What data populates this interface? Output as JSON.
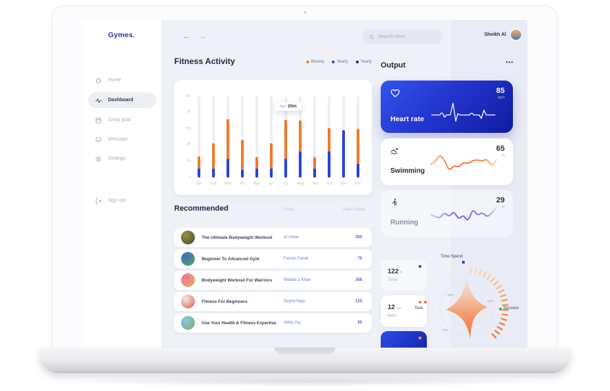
{
  "sidebar": {
    "logo": "Gymes.",
    "items": [
      {
        "id": "home",
        "label": "Home",
        "icon": "home",
        "active": false
      },
      {
        "id": "dashboard",
        "label": "Dashboard",
        "icon": "activity",
        "active": true
      },
      {
        "id": "creat-goal",
        "label": "Creat goal",
        "icon": "calendar",
        "active": false
      },
      {
        "id": "message",
        "label": "Message",
        "icon": "message",
        "active": false
      },
      {
        "id": "settings",
        "label": "Settings",
        "icon": "gear",
        "active": false
      }
    ],
    "signout": {
      "id": "sign-out",
      "label": "Sign out",
      "icon": "signout"
    }
  },
  "topbar": {
    "search_placeholder": "Search Here",
    "user_name": "Sheikh Al"
  },
  "fitness": {
    "title": "Fitness Activity",
    "legend": [
      {
        "label": "Weekly",
        "color": "#f6772c"
      },
      {
        "label": "Yearly",
        "color": "#2742e0"
      },
      {
        "label": "Yearly",
        "color": "#232d6e"
      }
    ],
    "tooltip": {
      "series": "Swi",
      "value": "20m"
    }
  },
  "chart_data": {
    "type": "bar",
    "stacked": true,
    "title": "Fitness Activity",
    "categories": [
      "Jan",
      "Feb",
      "Mar",
      "Arl",
      "May",
      "Jun",
      "Jul",
      "Aug",
      "Sep",
      "Oct",
      "Nov",
      "Dec"
    ],
    "y_ticks": [
      95,
      75,
      50,
      25,
      10,
      0
    ],
    "y_scale_note": "non-linear axis, tick labels evenly spaced",
    "series": [
      {
        "name": "Yearly",
        "color": "#2742e0",
        "values": [
          6,
          6,
          13,
          5,
          6,
          6,
          13,
          20,
          6,
          20,
          48,
          9
        ]
      },
      {
        "name": "Weekly",
        "color": "#f6772c",
        "values": [
          9,
          22,
          52,
          28,
          8,
          22,
          51,
          43,
          8,
          31,
          0,
          41
        ]
      }
    ],
    "tooltip": {
      "month": "Jul",
      "text": "Swi 20m"
    },
    "legend_position": "top-right",
    "grid": "vertical bar tracks only"
  },
  "recommended": {
    "title": "Recommended",
    "columns": {
      "trainer": "Trinor",
      "time": "Time Frame"
    },
    "chevron": "›",
    "rows": [
      {
        "title": "The Ultimate Bodyweight Workout",
        "trainer": "Al rohan",
        "time": "280",
        "thumb": [
          "#4a4636",
          "#97953c"
        ]
      },
      {
        "title": "Beginner To Advanced Gym",
        "trainer": "Farzon Faruk",
        "time": "75",
        "thumb": [
          "#58a85c",
          "#3a6fc0"
        ]
      },
      {
        "title": "Bodyweight Workout For Warriors",
        "trainer": "Wahab a Khan",
        "time": "356",
        "thumb": [
          "#f0b05a",
          "#e87898"
        ]
      },
      {
        "title": "Fitness For Beginners",
        "trainer": "Seyed Raju",
        "time": "125",
        "thumb": [
          "#e05545",
          "#f2ece6"
        ]
      },
      {
        "title": "Use Your Health & Fitness Expertise",
        "trainer": "Athiq chy",
        "time": "95",
        "thumb": [
          "#79b05c",
          "#8fc3ea"
        ]
      }
    ]
  },
  "output": {
    "title": "Output",
    "menu": "•••",
    "heart": {
      "label": "Heart rate",
      "value": "85",
      "unit": "bpm"
    },
    "swimming": {
      "label": "Swimming",
      "value": "65",
      "unit": "m",
      "color": "#f4732e",
      "spark": [
        38,
        48,
        80,
        55,
        12,
        35,
        28,
        48,
        42,
        55,
        58,
        52,
        62,
        30,
        58
      ]
    },
    "running": {
      "label": "Running",
      "value": "29",
      "unit": "m",
      "color": "#6b63ee",
      "spark": [
        45,
        38,
        30,
        55,
        35,
        60,
        25,
        45,
        15,
        70,
        40,
        55,
        35,
        50,
        75
      ]
    }
  },
  "stats": [
    {
      "value": "122",
      "unit": "h",
      "label": "Time",
      "dot": "#2742e0",
      "style": "ghost"
    },
    {
      "value": "12",
      "unit": "typ",
      "label": "Item",
      "dot": "#f6772c",
      "style": "white"
    },
    {
      "value": "",
      "unit": "",
      "label": "",
      "dot": "#f6a02c",
      "style": "blue"
    }
  ],
  "radar": {
    "title": "Time Spend",
    "title_dot": "#2742e0",
    "axis_left": {
      "label": "Task",
      "dot": "#f6772c"
    },
    "axis_right": {
      "label": "Success",
      "dot": "#3cb24a"
    },
    "rings": [
      "50%",
      "25%",
      "5%",
      "75%"
    ]
  }
}
